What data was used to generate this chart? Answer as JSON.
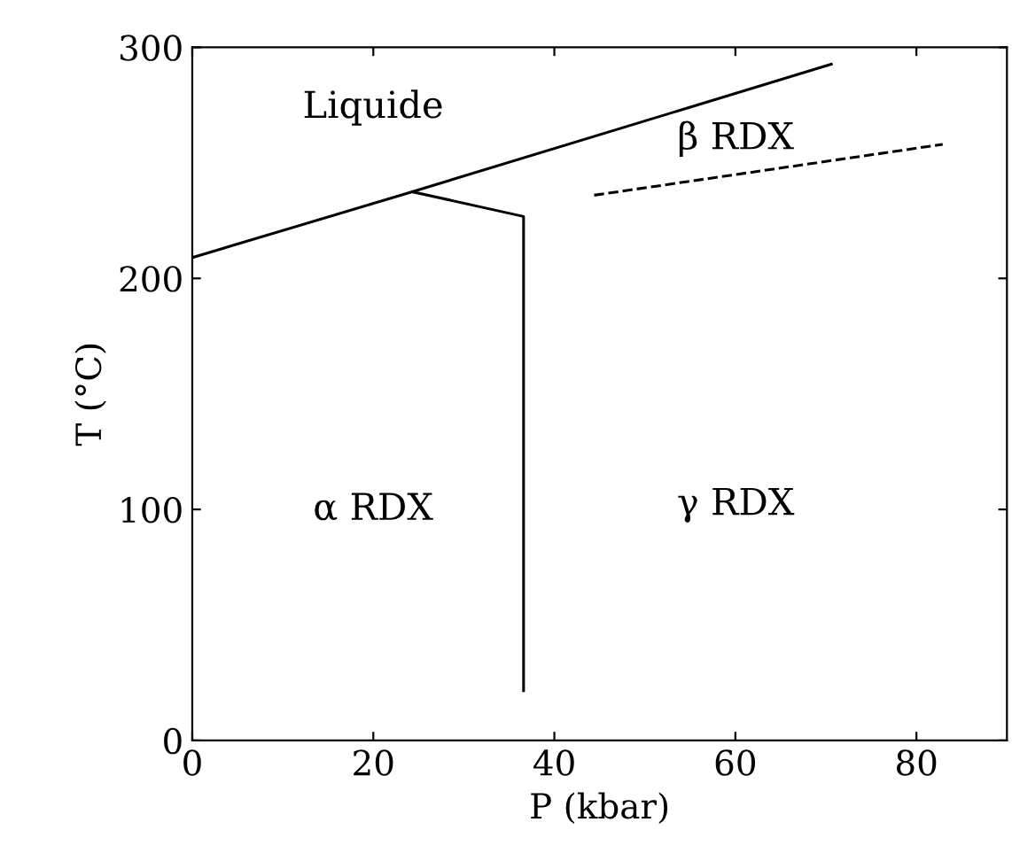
{
  "chart_data": {
    "type": "line",
    "xlabel": "P (kbar)",
    "ylabel": "T (°C)",
    "xlim": [
      0,
      90
    ],
    "ylim": [
      0,
      300
    ],
    "xticks": [
      0,
      20,
      40,
      60,
      80
    ],
    "yticks": [
      0,
      100,
      200,
      300
    ],
    "grid": false,
    "marker": "none",
    "series": [
      {
        "color": "#000000",
        "x": [
          0,
          24.3,
          70.6
        ],
        "values": [
          209,
          237.5,
          292.7
        ],
        "line_style": "solid"
      },
      {
        "color": "#000000",
        "x": [
          24.3,
          36.6,
          36.6
        ],
        "values": [
          237.5,
          226.8,
          21.5
        ],
        "line_style": "solid"
      },
      {
        "color": "#000000",
        "x": [
          44.4,
          82.9
        ],
        "values": [
          236,
          258
        ],
        "line_style": "dashed"
      }
    ],
    "annotations": [
      "Liquide",
      "β RDX",
      "α RDX",
      "γ RDX"
    ]
  }
}
